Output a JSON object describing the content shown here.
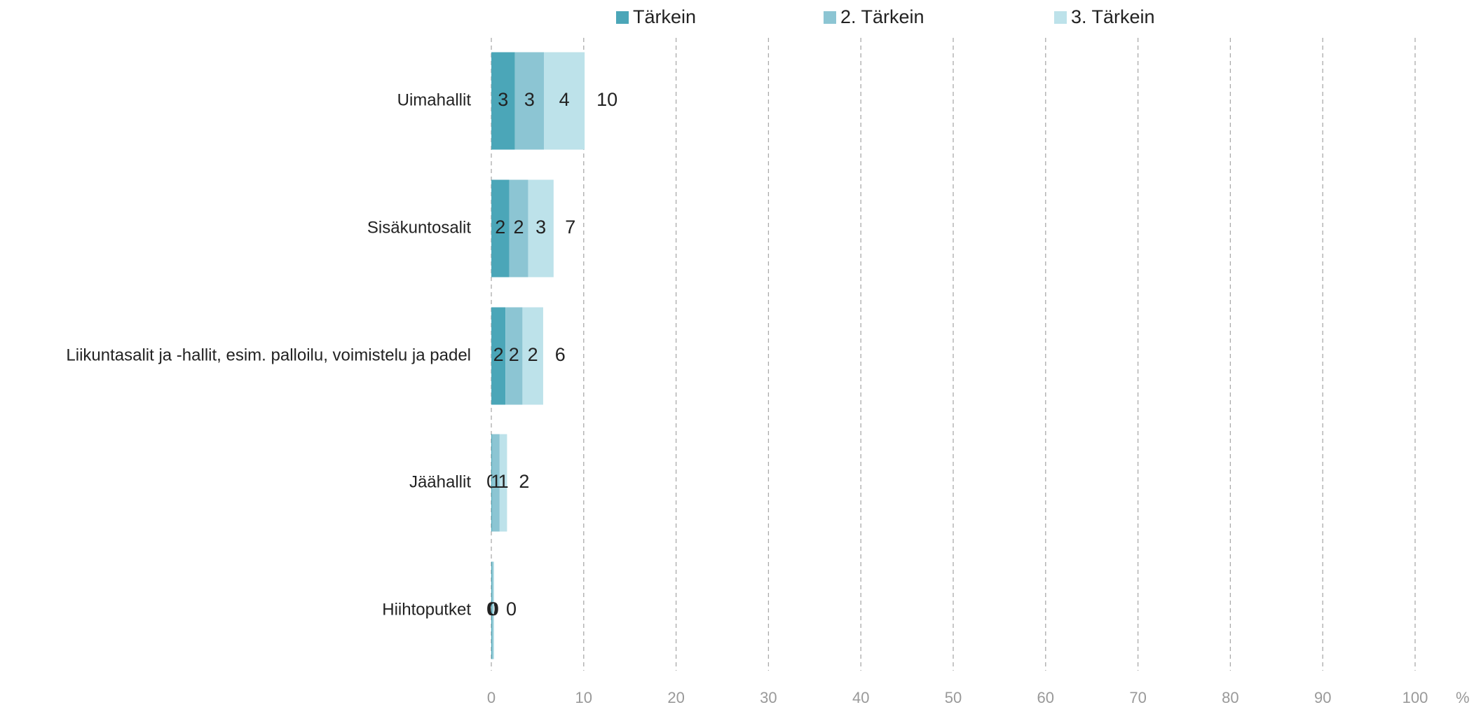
{
  "chart_data": {
    "type": "stacked_barh",
    "categories": [
      "Uimahallit",
      "Sisäkuntosalit",
      "Liikuntasalit ja -hallit, esim. palloilu, voimistelu ja padel",
      "Jäähallit",
      "Hiihtoputket"
    ],
    "series": [
      {
        "name": "Tärkein",
        "color": "#4ba6b8",
        "values": [
          2.55,
          1.94,
          1.53,
          0.1,
          0.1
        ],
        "value_labels": [
          "3",
          "2",
          "2",
          "0",
          "0"
        ]
      },
      {
        "name": "2. Tärkein",
        "color": "#8cc5d3",
        "values": [
          3.16,
          2.04,
          1.84,
          0.8,
          0.1
        ],
        "value_labels": [
          "3",
          "2",
          "2",
          "1",
          "0"
        ]
      },
      {
        "name": "3. Tärkein",
        "color": "#bde2ea",
        "values": [
          4.39,
          2.76,
          2.24,
          0.8,
          0.1
        ],
        "value_labels": [
          "4",
          "3",
          "2",
          "1",
          "0"
        ]
      }
    ],
    "totals": [
      10.1,
      6.7,
      5.6,
      1.7,
      0.3
    ],
    "totals_labels": [
      "10",
      "7",
      "6",
      "2",
      "0"
    ],
    "xlim": [
      0,
      100
    ],
    "xticks": [
      0,
      10,
      20,
      30,
      40,
      50,
      60,
      70,
      80,
      90,
      100
    ],
    "xlabel": "%",
    "grid": true,
    "legend": "top"
  }
}
